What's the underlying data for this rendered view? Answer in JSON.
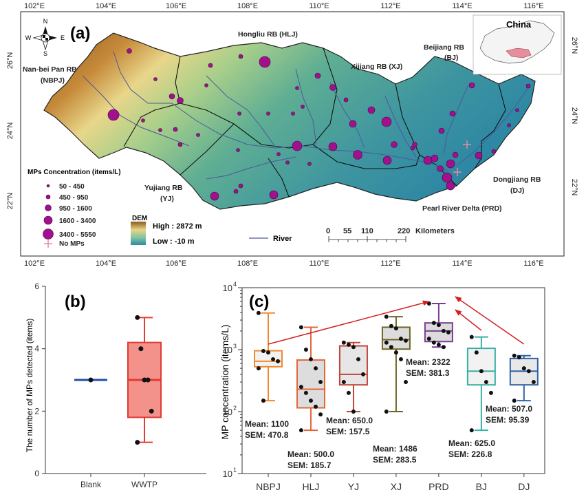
{
  "map": {
    "panel_label": "(a)",
    "lon_ticks": [
      "102°E",
      "104°E",
      "106°E",
      "108°E",
      "110°E",
      "112°E",
      "114°E",
      "116°E"
    ],
    "lat_ticks": [
      "26°N",
      "24°N",
      "22°N"
    ],
    "compass": {
      "n": "N",
      "s": "S",
      "e": "E",
      "w": "W"
    },
    "inset_label": "China",
    "region_labels": {
      "hlj": "Hongliu RB (HLJ)",
      "bj_1": "Beijiang RB",
      "bj_2": "(BJ)",
      "nbpj_1": "Nan-bei Pan RB",
      "nbpj_2": "(NBPJ)",
      "xj": "Xijiang RB (XJ)",
      "yj_1": "Yujiang RB",
      "yj_2": "(YJ)",
      "dj_1": "Dongjiang RB",
      "dj_2": "(DJ)",
      "prd": "Pearl River Delta (PRD)"
    },
    "legend": {
      "title": "MPs Concentration (items/L)",
      "items": [
        "50 - 450",
        "450 - 950",
        "950 - 1600",
        "1600 - 3400",
        "3400 - 5550"
      ],
      "no_mps": "No MPs",
      "dem_title": "DEM",
      "dem_high": "High : 2872 m",
      "dem_low": "Low : -10 m",
      "river": "River"
    },
    "scale": {
      "ticks": [
        "0",
        "55",
        "110",
        "220"
      ],
      "unit": "Kilometers"
    },
    "colors": {
      "point": "#a3108f",
      "river": "#4a5a9a",
      "no_mps": "#e98aa5"
    }
  },
  "chart_data": [
    {
      "type": "box",
      "panel_label": "(b)",
      "ylabel": "The number of MPs detected (items)",
      "ylim": [
        0,
        6
      ],
      "yticks": [
        "0",
        "2",
        "4",
        "6"
      ],
      "categories": [
        "Blank",
        "WWTP"
      ],
      "boxes": [
        {
          "name": "Blank",
          "min": 3,
          "q1": 3,
          "median": 3,
          "q3": 3,
          "max": 3,
          "points": [
            3
          ],
          "color": "#1f4fa5"
        },
        {
          "name": "WWTP",
          "min": 1,
          "q1": 1.8,
          "median": 3,
          "q3": 4.2,
          "max": 5,
          "points": [
            5,
            4,
            3,
            3,
            2,
            1
          ],
          "color": "#e23a33"
        }
      ]
    },
    {
      "type": "box",
      "panel_label": "(c)",
      "ylabel": "MP concentration (items/L)",
      "yscale": "log",
      "ylim": [
        10,
        10000
      ],
      "ytick_base": "10",
      "ytick_exps": [
        "1",
        "2",
        "3",
        "4"
      ],
      "categories": [
        "NBPJ",
        "HLJ",
        "YJ",
        "XJ",
        "PRD",
        "BJ",
        "DJ"
      ],
      "boxes": [
        {
          "name": "NBPJ",
          "min": 150,
          "q1": 530,
          "median": 650,
          "q3": 960,
          "max": 3900,
          "points": [
            3900,
            950,
            900,
            700,
            650,
            500,
            150
          ],
          "color": "#f08a2c",
          "fill": "#f2f2f2"
        },
        {
          "name": "HLJ",
          "min": 50,
          "q1": 115,
          "median": 230,
          "q3": 680,
          "max": 2300,
          "points": [
            2300,
            1000,
            700,
            500,
            300,
            250,
            200,
            150,
            120,
            90,
            50
          ],
          "color": "#e3663a",
          "fill": "#dddddd"
        },
        {
          "name": "YJ",
          "min": 100,
          "q1": 270,
          "median": 400,
          "q3": 1150,
          "max": 1300,
          "points": [
            1300,
            1200,
            1100,
            700,
            400,
            300,
            200,
            100
          ],
          "color": "#c2453a",
          "fill": "#e6e6e6"
        },
        {
          "name": "XJ",
          "min": 100,
          "q1": 1020,
          "median": 1450,
          "q3": 2300,
          "max": 3400,
          "points": [
            3400,
            2400,
            2200,
            1500,
            1400,
            1300,
            1100,
            900,
            700,
            300,
            100
          ],
          "color": "#6d6425",
          "fill": "#dcdcdc"
        },
        {
          "name": "PRD",
          "min": 1100,
          "q1": 1350,
          "median": 2000,
          "q3": 2700,
          "max": 5550,
          "points": [
            5550,
            2700,
            2500,
            2000,
            1900,
            1500,
            1300,
            1200,
            1100
          ],
          "color": "#7b3d91",
          "fill": "#dcdcdc"
        },
        {
          "name": "BJ",
          "min": 50,
          "q1": 270,
          "median": 450,
          "q3": 1050,
          "max": 1600,
          "points": [
            1600,
            900,
            450,
            300,
            200,
            50
          ],
          "color": "#36b0a5",
          "fill": "#f2f2f2"
        },
        {
          "name": "DJ",
          "min": 150,
          "q1": 270,
          "median": 450,
          "q3": 720,
          "max": 800,
          "points": [
            800,
            750,
            500,
            450,
            300,
            150
          ],
          "color": "#2f63a4",
          "fill": "#e8e8e8"
        }
      ],
      "stats": [
        {
          "mean": "Mean: 1100",
          "sem": "SEM: 470.8"
        },
        {
          "mean": "Mean: 500.0",
          "sem": "SEM: 185.7"
        },
        {
          "mean": "Mean: 650.0",
          "sem": "SEM: 157.5"
        },
        {
          "mean": "Mean: 1486",
          "sem": "SEM: 283.5"
        },
        {
          "mean": "Mean: 2322",
          "sem": "SEM: 381.3"
        },
        {
          "mean": "Mean: 625.0",
          "sem": "SEM: 226.8"
        },
        {
          "mean": "Mean: 507.0",
          "sem": "SEM: 95.39"
        }
      ],
      "arrow_color": "#d42020"
    }
  ]
}
